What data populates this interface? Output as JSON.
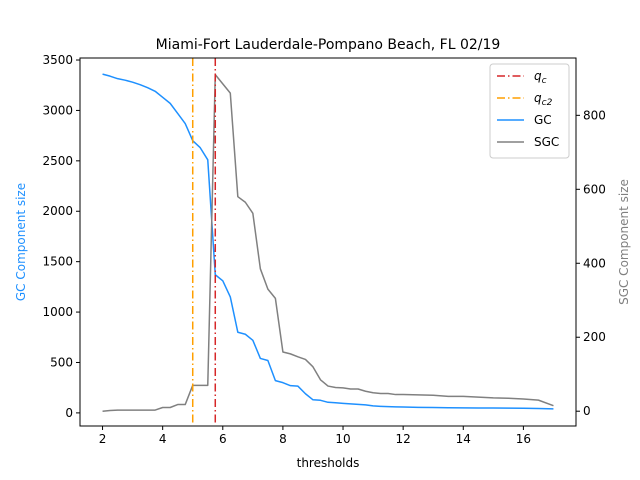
{
  "chart_data": {
    "type": "line",
    "title": "Miami-Fort Lauderdale-Pompano Beach, FL 02/19",
    "xlabel": "thresholds",
    "ylabel_left": "GC Component size",
    "ylabel_right": "SGC Component size",
    "xlim": [
      1.25,
      17.75
    ],
    "xticks": [
      2,
      4,
      6,
      8,
      10,
      12,
      14,
      16
    ],
    "ylim_left": [
      -130,
      3520
    ],
    "yticks_left": [
      0,
      500,
      1000,
      1500,
      2000,
      2500,
      3000,
      3500
    ],
    "ylim_right": [
      -40,
      955
    ],
    "yticks_right": [
      0,
      200,
      400,
      600,
      800
    ],
    "colors": {
      "qc": "#d62728",
      "qc2": "#ff9f00",
      "gc": "#1e90ff",
      "sgc": "#808080",
      "axis_left_label": "#1e90ff",
      "axis_right_label": "#808080"
    },
    "vlines": [
      {
        "label_main": "q",
        "label_sub": "c",
        "x": 5.75,
        "color": "#d62728"
      },
      {
        "label_main": "q",
        "label_sub": "c2",
        "x": 5.0,
        "color": "#ff9f00"
      }
    ],
    "series": [
      {
        "name": "GC",
        "axis": "left",
        "x": [
          2.0,
          2.25,
          2.5,
          2.75,
          3.0,
          3.25,
          3.5,
          3.75,
          4.0,
          4.25,
          4.5,
          4.75,
          5.0,
          5.25,
          5.5,
          5.75,
          6.0,
          6.25,
          6.5,
          6.75,
          7.0,
          7.25,
          7.5,
          7.75,
          8.0,
          8.25,
          8.5,
          8.75,
          9.0,
          9.25,
          9.5,
          9.75,
          10.0,
          10.25,
          10.5,
          10.75,
          11.0,
          11.25,
          11.5,
          11.75,
          12.0,
          12.5,
          13.0,
          13.5,
          14.0,
          14.5,
          15.0,
          15.5,
          16.0,
          16.5,
          17.0
        ],
        "values": [
          3360,
          3340,
          3315,
          3300,
          3280,
          3255,
          3225,
          3190,
          3130,
          3070,
          2970,
          2870,
          2700,
          2630,
          2510,
          1370,
          1310,
          1150,
          800,
          780,
          720,
          540,
          520,
          320,
          300,
          270,
          265,
          190,
          130,
          125,
          105,
          100,
          95,
          90,
          85,
          80,
          70,
          65,
          62,
          60,
          58,
          55,
          53,
          51,
          50,
          49,
          48,
          47,
          46,
          44,
          40
        ]
      },
      {
        "name": "SGC",
        "axis": "right",
        "x": [
          2.0,
          2.25,
          2.5,
          2.75,
          3.0,
          3.25,
          3.5,
          3.75,
          4.0,
          4.25,
          4.5,
          4.75,
          5.0,
          5.25,
          5.5,
          5.75,
          6.0,
          6.25,
          6.5,
          6.75,
          7.0,
          7.25,
          7.5,
          7.75,
          8.0,
          8.25,
          8.5,
          8.75,
          9.0,
          9.25,
          9.5,
          9.75,
          10.0,
          10.25,
          10.5,
          10.75,
          11.0,
          11.25,
          11.5,
          11.75,
          12.0,
          12.5,
          13.0,
          13.5,
          14.0,
          14.5,
          15.0,
          15.5,
          16.0,
          16.5,
          17.0
        ],
        "values": [
          0,
          2,
          3,
          3,
          3,
          3,
          3,
          3,
          10,
          10,
          18,
          18,
          70,
          70,
          70,
          910,
          885,
          860,
          580,
          565,
          535,
          385,
          330,
          305,
          160,
          155,
          147,
          140,
          120,
          85,
          68,
          64,
          63,
          60,
          60,
          54,
          50,
          48,
          48,
          45,
          45,
          44,
          43,
          40,
          40,
          38,
          36,
          35,
          33,
          30,
          15
        ]
      }
    ],
    "legend": {
      "placement": "top-right",
      "entries": [
        {
          "key": "qc",
          "main": "q",
          "sub": "c"
        },
        {
          "key": "qc2",
          "main": "q",
          "sub": "c2"
        },
        {
          "key": "gc",
          "main": "GC",
          "sub": ""
        },
        {
          "key": "sgc",
          "main": "SGC",
          "sub": ""
        }
      ]
    }
  }
}
